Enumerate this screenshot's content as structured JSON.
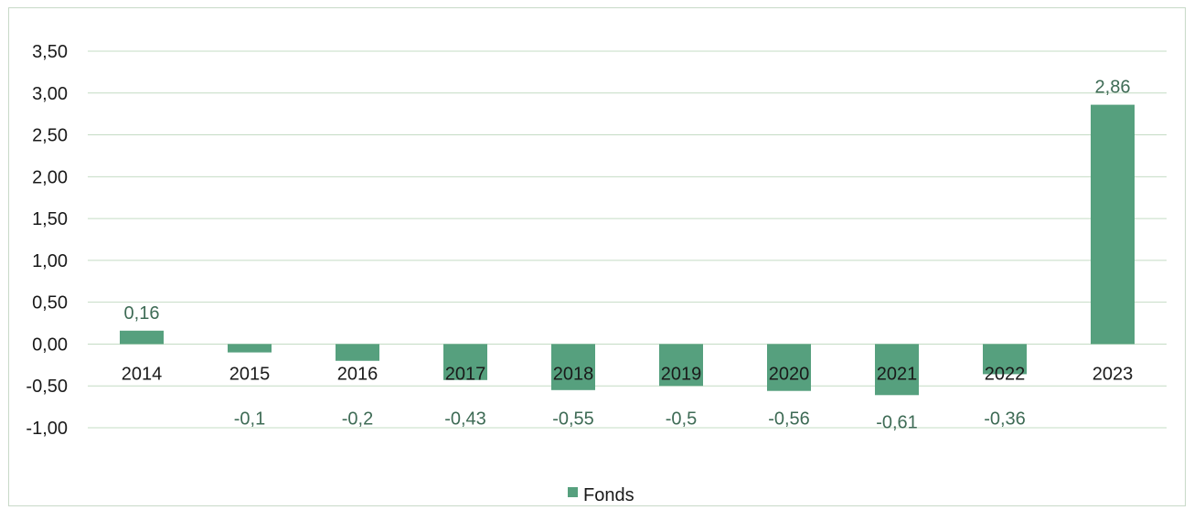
{
  "chart_data": {
    "type": "bar",
    "categories": [
      "2014",
      "2015",
      "2016",
      "2017",
      "2018",
      "2019",
      "2020",
      "2021",
      "2022",
      "2023"
    ],
    "series": [
      {
        "name": "Fonds",
        "values": [
          0.16,
          -0.1,
          -0.2,
          -0.43,
          -0.55,
          -0.5,
          -0.56,
          -0.61,
          -0.36,
          2.86
        ]
      }
    ],
    "data_labels": [
      "0,16",
      "-0,1",
      "-0,2",
      "-0,43",
      "-0,55",
      "-0,5",
      "-0,56",
      "-0,61",
      "-0,36",
      "2,86"
    ],
    "y_ticks": [
      3.5,
      3.0,
      2.5,
      2.0,
      1.5,
      1.0,
      0.5,
      0.0,
      -0.5,
      -1.0
    ],
    "y_tick_labels": [
      "3,50",
      "3,00",
      "2,50",
      "2,00",
      "1,50",
      "1,00",
      "0,50",
      "0,00",
      "-0,50",
      "-1,00"
    ],
    "ylim": [
      -1.0,
      3.5
    ],
    "grid": true,
    "legend_position": "bottom",
    "title": "",
    "xlabel": "",
    "ylabel": ""
  },
  "colors": {
    "bar": "#56a07e",
    "grid": "#c4dcc4",
    "label": "#3e6b55"
  },
  "legend": {
    "label": "Fonds"
  }
}
